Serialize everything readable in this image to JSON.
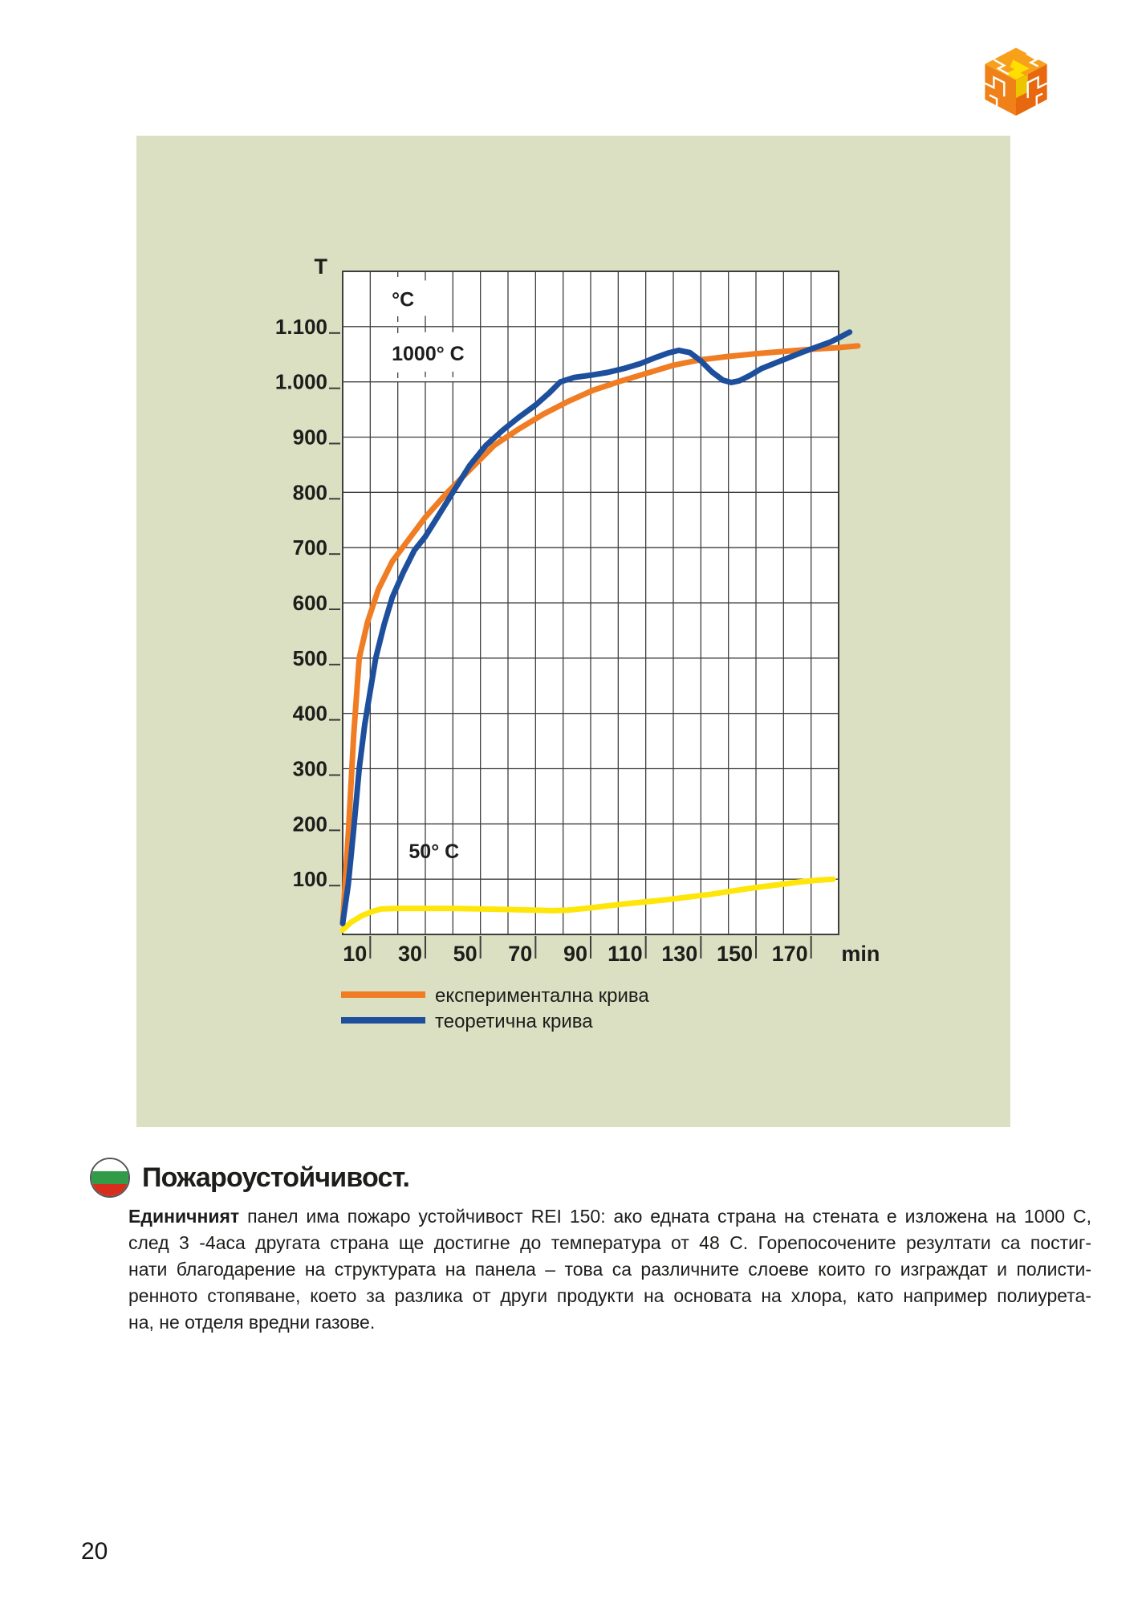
{
  "page": {
    "number": "20"
  },
  "logo": {
    "label": "puzzle-cube-logo",
    "colors": {
      "top": "#f9a01b",
      "left": "#f08018",
      "right": "#e8680f",
      "piece": "#ffdf00",
      "piece_side": "#edc400",
      "seam": "#ffffff"
    }
  },
  "section": {
    "heading": "Пожароустойчивост.",
    "flag_colors": {
      "top": "#ffffff",
      "mid": "#319b47",
      "bottom": "#d62d1e"
    },
    "paragraph": {
      "lead": "Единичният",
      "line1_rest": "панел има пожаро устойчивост REI 150: ако едната страна на стената е изложена на 1000 C,",
      "line2": "след 3 -4аса другата страна ще достигне до температура от 48 С. Горепосочените резултати са постиг-",
      "line3": "нати благодарение на структурата на панела – това са различните слоеве които го изграждат и полисти-",
      "line4": "ренното стопяване, което за разлика от други продукти на основата на хлора, като например полиурета-",
      "line5": "на, не отделя вредни газове."
    }
  },
  "chart_data": {
    "type": "line",
    "title": "",
    "x_axis": {
      "label": "min",
      "range": [
        0,
        180
      ],
      "grid_step": 10,
      "tick_values": [
        10,
        30,
        50,
        70,
        90,
        110,
        130,
        150,
        170
      ]
    },
    "y_axis": {
      "label": "T",
      "range": [
        0,
        1200
      ],
      "grid_step": 100,
      "ticks": [
        {
          "v": 1100,
          "label": "1.100"
        },
        {
          "v": 1000,
          "label": "1.000"
        },
        {
          "v": 900,
          "label": "900"
        },
        {
          "v": 800,
          "label": "800"
        },
        {
          "v": 700,
          "label": "700"
        },
        {
          "v": 600,
          "label": "600"
        },
        {
          "v": 500,
          "label": "500"
        },
        {
          "v": 400,
          "label": "400"
        },
        {
          "v": 300,
          "label": "300"
        },
        {
          "v": 200,
          "label": "200"
        },
        {
          "v": 100,
          "label": "100"
        }
      ]
    },
    "colors": {
      "panel_bg": "#dbe0c2",
      "plot_bg": "#ffffff",
      "grid": "#3e3e3e",
      "text": "#1d1d1b"
    },
    "grid": true,
    "legend_position": "bottom-left",
    "annotations": [
      {
        "text": "°C",
        "x_min": 17.8,
        "y_temp": 1150,
        "bg_w": 58
      },
      {
        "text": "1000° C",
        "x_min": 17.8,
        "y_temp": 1052,
        "bg_w": 110
      },
      {
        "text": "50° C",
        "x_min": 24,
        "y_temp": 151,
        "bg_w": 0
      }
    ],
    "dashed_vgrid": [
      {
        "x_min": 20,
        "from_temp": 1200,
        "to_temp": 1000
      },
      {
        "x_min": 30,
        "from_temp": 1100,
        "to_temp": 1000
      },
      {
        "x_min": 40,
        "from_temp": 1100,
        "to_temp": 1000
      }
    ],
    "series": [
      {
        "id": "experimental-curve",
        "name": "експериментална крива",
        "color": "#f07d23",
        "points": [
          [
            0,
            20
          ],
          [
            2,
            180
          ],
          [
            4,
            360
          ],
          [
            6,
            500
          ],
          [
            9,
            565
          ],
          [
            13,
            625
          ],
          [
            18,
            675
          ],
          [
            24,
            715
          ],
          [
            30,
            755
          ],
          [
            38,
            800
          ],
          [
            46,
            840
          ],
          [
            55,
            885
          ],
          [
            64,
            915
          ],
          [
            73,
            942
          ],
          [
            82,
            965
          ],
          [
            91,
            985
          ],
          [
            100,
            1000
          ],
          [
            110,
            1015
          ],
          [
            120,
            1030
          ],
          [
            130,
            1040
          ],
          [
            140,
            1046
          ],
          [
            150,
            1051
          ],
          [
            160,
            1055
          ],
          [
            170,
            1059
          ],
          [
            180,
            1062
          ],
          [
            187,
            1065
          ]
        ]
      },
      {
        "id": "theoretical-curve",
        "name": "теоретична крива",
        "color": "#1e4f9d",
        "points": [
          [
            0,
            20
          ],
          [
            2,
            90
          ],
          [
            4,
            190
          ],
          [
            6,
            300
          ],
          [
            8,
            380
          ],
          [
            10,
            440
          ],
          [
            12,
            500
          ],
          [
            15,
            560
          ],
          [
            18,
            610
          ],
          [
            22,
            655
          ],
          [
            26,
            695
          ],
          [
            30,
            720
          ],
          [
            35,
            760
          ],
          [
            40,
            800
          ],
          [
            46,
            848
          ],
          [
            52,
            885
          ],
          [
            58,
            912
          ],
          [
            64,
            936
          ],
          [
            70,
            958
          ],
          [
            75,
            980
          ],
          [
            79,
            1000
          ],
          [
            84,
            1008
          ],
          [
            90,
            1012
          ],
          [
            96,
            1017
          ],
          [
            102,
            1024
          ],
          [
            108,
            1033
          ],
          [
            113,
            1043
          ],
          [
            118,
            1052
          ],
          [
            122,
            1057
          ],
          [
            126,
            1053
          ],
          [
            130,
            1038
          ],
          [
            134,
            1018
          ],
          [
            138,
            1003
          ],
          [
            141,
            999
          ],
          [
            144,
            1002
          ],
          [
            148,
            1012
          ],
          [
            152,
            1024
          ],
          [
            157,
            1034
          ],
          [
            162,
            1044
          ],
          [
            167,
            1054
          ],
          [
            172,
            1063
          ],
          [
            177,
            1072
          ],
          [
            181,
            1082
          ],
          [
            184,
            1090
          ]
        ]
      },
      {
        "id": "cold-side-curve",
        "name": "",
        "color": "#ffe60a",
        "points": [
          [
            0,
            8
          ],
          [
            3,
            22
          ],
          [
            7,
            34
          ],
          [
            11,
            42
          ],
          [
            14,
            46
          ],
          [
            20,
            47
          ],
          [
            30,
            47
          ],
          [
            40,
            47
          ],
          [
            50,
            46
          ],
          [
            60,
            45
          ],
          [
            70,
            44
          ],
          [
            76,
            43
          ],
          [
            82,
            44
          ],
          [
            88,
            47
          ],
          [
            95,
            51
          ],
          [
            102,
            55
          ],
          [
            110,
            59
          ],
          [
            118,
            63
          ],
          [
            126,
            68
          ],
          [
            134,
            73
          ],
          [
            142,
            79
          ],
          [
            150,
            85
          ],
          [
            158,
            90
          ],
          [
            166,
            95
          ],
          [
            172,
            98
          ],
          [
            178,
            100
          ]
        ]
      }
    ],
    "legend": [
      {
        "series": 0
      },
      {
        "series": 1
      }
    ]
  }
}
